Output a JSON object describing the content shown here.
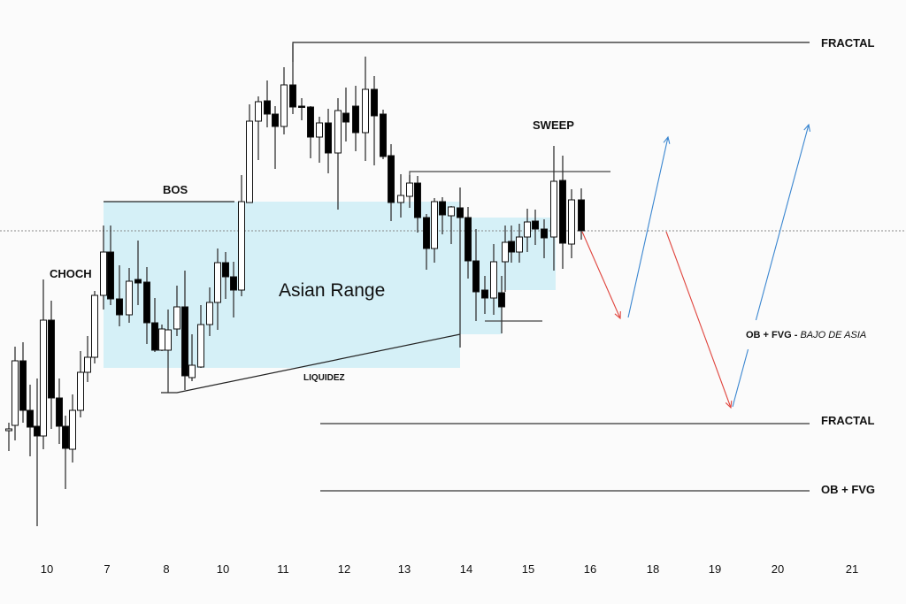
{
  "chart_data": {
    "type": "candlestick",
    "title": "",
    "xlabel": "",
    "ylabel": "",
    "x_tick_labels": [
      "10",
      "7",
      "8",
      "10",
      "11",
      "12",
      "13",
      "14",
      "15",
      "16",
      "18",
      "19",
      "20",
      "21"
    ],
    "grid": false,
    "candle_fields": [
      "open",
      "high",
      "low",
      "close"
    ],
    "candles": [
      [
        113,
        122,
        90,
        115
      ],
      [
        119,
        208,
        102,
        192
      ],
      [
        192,
        213,
        122,
        136
      ],
      [
        136,
        165,
        84,
        117
      ],
      [
        118,
        172,
        5,
        107
      ],
      [
        107,
        284,
        92,
        238
      ],
      [
        238,
        260,
        115,
        150
      ],
      [
        150,
        172,
        98,
        118
      ],
      [
        118,
        130,
        47,
        93
      ],
      [
        92,
        154,
        77,
        136
      ],
      [
        136,
        203,
        128,
        179
      ],
      [
        179,
        220,
        168,
        196
      ],
      [
        196,
        271,
        189,
        266
      ],
      [
        266,
        345,
        250,
        315
      ],
      [
        315,
        345,
        255,
        262
      ],
      [
        262,
        300,
        231,
        244
      ],
      [
        244,
        297,
        235,
        282
      ],
      [
        284,
        328,
        255,
        280
      ],
      [
        281,
        298,
        211,
        235
      ],
      [
        235,
        263,
        202,
        204
      ],
      [
        204,
        233,
        203,
        228
      ],
      [
        204,
        250,
        156,
        227
      ],
      [
        228,
        277,
        220,
        253
      ],
      [
        253,
        294,
        159,
        175
      ],
      [
        173,
        222,
        169,
        187
      ],
      [
        185,
        255,
        184,
        233
      ],
      [
        233,
        275,
        220,
        258
      ],
      [
        258,
        319,
        227,
        303
      ],
      [
        303,
        315,
        262,
        287
      ],
      [
        287,
        304,
        241,
        272
      ],
      [
        272,
        402,
        265,
        372
      ],
      [
        371,
        482,
        371,
        463
      ],
      [
        463,
        491,
        419,
        485
      ],
      [
        486,
        509,
        456,
        471
      ],
      [
        471,
        480,
        409,
        457
      ],
      [
        457,
        524,
        448,
        504
      ],
      [
        504,
        550,
        471,
        479
      ],
      [
        480,
        489,
        464,
        479
      ],
      [
        479,
        480,
        421,
        445
      ],
      [
        445,
        468,
        416,
        461
      ],
      [
        461,
        477,
        404,
        427
      ],
      [
        427,
        489,
        363,
        475
      ],
      [
        472,
        501,
        440,
        462
      ],
      [
        480,
        503,
        429,
        450
      ],
      [
        450,
        536,
        418,
        499
      ],
      [
        499,
        514,
        413,
        469
      ],
      [
        471,
        476,
        420,
        423
      ],
      [
        424,
        437,
        350,
        371
      ],
      [
        371,
        403,
        354,
        379
      ],
      [
        378,
        402,
        365,
        393
      ],
      [
        393,
        401,
        337,
        354
      ],
      [
        354,
        358,
        295,
        319
      ],
      [
        319,
        376,
        303,
        372
      ],
      [
        372,
        377,
        335,
        357
      ],
      [
        356,
        367,
        324,
        366
      ],
      [
        365,
        388,
        207,
        354
      ],
      [
        354,
        366,
        285,
        305
      ],
      [
        305,
        341,
        237,
        270
      ],
      [
        272,
        288,
        245,
        263
      ],
      [
        263,
        324,
        244,
        304
      ],
      [
        269,
        288,
        223,
        253
      ],
      [
        304,
        345,
        270,
        326
      ],
      [
        327,
        345,
        303,
        315
      ],
      [
        315,
        347,
        303,
        332
      ],
      [
        332,
        364,
        315,
        349
      ],
      [
        350,
        363,
        323,
        341
      ],
      [
        341,
        352,
        308,
        331
      ],
      [
        332,
        435,
        294,
        395
      ],
      [
        396,
        424,
        296,
        325
      ],
      [
        324,
        386,
        308,
        374
      ],
      [
        374,
        387,
        329,
        339
      ]
    ],
    "levels": [
      {
        "label": "FRACTAL",
        "price": 552
      },
      {
        "label": "FRACTAL",
        "price": 121
      },
      {
        "label": "OB + FVG",
        "price": 45
      }
    ],
    "reference_price": 339,
    "annotations": {
      "choch": "CHOCH",
      "bos": "BOS",
      "asian_range": "Asian Range",
      "liquidity": "LIQUIDEZ",
      "sweep": "SWEEP",
      "target_bold": "OB + FVG - ",
      "target_italic": "BAJO DE ASIA"
    },
    "colors": {
      "bullish_body": "#ffffff",
      "bearish_body": "#000000",
      "range_box": "#d5f0f7",
      "down_arrow": "#e0453e",
      "up_arrow": "#3a86d0"
    }
  }
}
